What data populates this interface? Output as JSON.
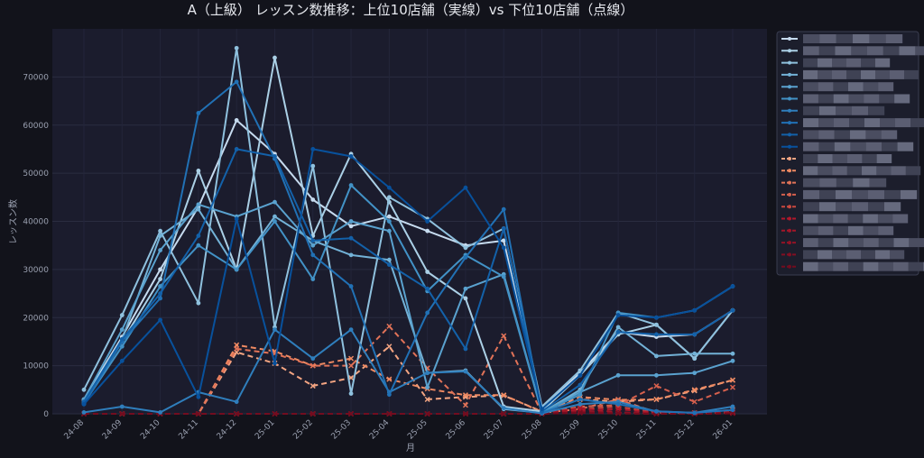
{
  "chart_data": {
    "type": "line",
    "title": "A（上級） レッスン数推移：上位10店舗（実線）vs 下位10店舗（点線）",
    "xlabel": "月",
    "ylabel": "レッスン数",
    "ylim": [
      0,
      80000
    ],
    "yticks": [
      0,
      10000,
      20000,
      30000,
      40000,
      50000,
      60000,
      70000
    ],
    "grid": true,
    "legend_position": "right-outside",
    "categories": [
      "24-08",
      "24-09",
      "24-10",
      "24-11",
      "24-12",
      "25-01",
      "25-02",
      "25-03",
      "25-04",
      "25-05",
      "25-06",
      "25-07",
      "25-08",
      "25-09",
      "25-10",
      "25-11",
      "25-12",
      "26-01"
    ],
    "series": [
      {
        "group": "top",
        "color": "#c6dbef",
        "values": [
          3000,
          16000,
          30000,
          43000,
          61000,
          54000,
          44500,
          39000,
          41000,
          38000,
          35000,
          36000,
          1000,
          8500,
          17000,
          16000,
          16500,
          21500
        ]
      },
      {
        "group": "top",
        "color": "#abd0e6",
        "values": [
          2800,
          15000,
          28000,
          50500,
          30000,
          74000,
          37000,
          54000,
          44000,
          29500,
          24000,
          1500,
          500,
          8000,
          16500,
          18500,
          11500,
          21500
        ]
      },
      {
        "group": "top",
        "color": "#8fc1de",
        "values": [
          5000,
          20500,
          38000,
          23000,
          76000,
          18000,
          51500,
          4200,
          45000,
          40500,
          34500,
          38500,
          1500,
          9000,
          21000,
          18500,
          11500,
          21500
        ]
      },
      {
        "group": "top",
        "color": "#73b2d7",
        "values": [
          2500,
          15500,
          37000,
          42500,
          30000,
          41000,
          36000,
          33000,
          32000,
          8500,
          9000,
          1000,
          200,
          5000,
          18000,
          12000,
          12500,
          12500
        ]
      },
      {
        "group": "top",
        "color": "#5aa2cf",
        "values": [
          3000,
          17500,
          34000,
          43500,
          41000,
          44000,
          35000,
          40000,
          38000,
          5500,
          26000,
          29000,
          300,
          4500,
          8000,
          8000,
          8500,
          11000
        ]
      },
      {
        "group": "top",
        "color": "#4292c6",
        "values": [
          2200,
          14000,
          26500,
          35000,
          30000,
          40000,
          28000,
          47500,
          40000,
          25500,
          33000,
          28500,
          200,
          4000,
          21000,
          20000,
          21500,
          26500
        ]
      },
      {
        "group": "top",
        "color": "#2f7ebc",
        "values": [
          300,
          1500,
          300,
          4500,
          2500,
          17500,
          11500,
          17500,
          4500,
          8500,
          8800,
          1200,
          100,
          2000,
          2500,
          500,
          200,
          1500
        ]
      },
      {
        "group": "top",
        "color": "#2171b5",
        "values": [
          2000,
          15000,
          24000,
          62500,
          69000,
          53000,
          33000,
          26500,
          4000,
          21000,
          32500,
          42500,
          200,
          3000,
          2000,
          500,
          200,
          800
        ]
      },
      {
        "group": "top",
        "color": "#1361a9",
        "values": [
          2500,
          15500,
          25000,
          37000,
          55000,
          53500,
          36000,
          36500,
          31000,
          26000,
          13500,
          38500,
          500,
          6000,
          17000,
          16500,
          16500,
          21500
        ]
      },
      {
        "group": "top",
        "color": "#08519c",
        "values": [
          2000,
          11000,
          19500,
          3500,
          40500,
          10500,
          55000,
          53500,
          47000,
          40000,
          47000,
          34500,
          1000,
          8000,
          20500,
          20000,
          21500,
          26500
        ]
      },
      {
        "group": "bottom",
        "color": "#f4a582",
        "values": [
          0,
          0,
          0,
          0,
          12800,
          10500,
          5800,
          7500,
          14000,
          3000,
          3500,
          3800,
          500,
          3000,
          2500,
          3000,
          4800,
          7000
        ]
      },
      {
        "group": "bottom",
        "color": "#ef8a62",
        "values": [
          0,
          0,
          0,
          0,
          14300,
          13000,
          10000,
          11500,
          7200,
          5200,
          3900,
          3900,
          400,
          3500,
          2900,
          3000,
          5000,
          7000
        ]
      },
      {
        "group": "bottom",
        "color": "#e27358",
        "values": [
          0,
          0,
          0,
          0,
          13500,
          12500,
          10000,
          10000,
          18200,
          9500,
          1800,
          16200,
          200,
          1000,
          3000,
          300,
          200,
          800
        ]
      },
      {
        "group": "bottom",
        "color": "#d6604d",
        "values": [
          0,
          0,
          0,
          0,
          0,
          0,
          0,
          0,
          0,
          0,
          0,
          0,
          0,
          1500,
          1800,
          5800,
          2500,
          5500
        ]
      },
      {
        "group": "bottom",
        "color": "#c9493f",
        "values": [
          0,
          0,
          0,
          0,
          0,
          0,
          0,
          0,
          0,
          0,
          0,
          0,
          0,
          1000,
          1500,
          200,
          100,
          300
        ]
      },
      {
        "group": "bottom",
        "color": "#b2182b",
        "values": [
          0,
          0,
          0,
          0,
          0,
          0,
          0,
          0,
          0,
          0,
          0,
          0,
          0,
          800,
          1000,
          200,
          100,
          200
        ]
      },
      {
        "group": "bottom",
        "color": "#a31628",
        "values": [
          0,
          0,
          0,
          0,
          0,
          0,
          0,
          0,
          0,
          0,
          0,
          0,
          0,
          1200,
          300,
          100,
          100,
          400
        ]
      },
      {
        "group": "bottom",
        "color": "#931325",
        "values": [
          0,
          0,
          0,
          0,
          0,
          0,
          0,
          0,
          0,
          0,
          0,
          0,
          0,
          500,
          200,
          0,
          0,
          200
        ]
      },
      {
        "group": "bottom",
        "color": "#830f22",
        "values": [
          0,
          0,
          0,
          0,
          0,
          0,
          0,
          0,
          0,
          0,
          0,
          0,
          0,
          300,
          100,
          0,
          0,
          100
        ]
      },
      {
        "group": "bottom",
        "color": "#730c1f",
        "values": [
          0,
          0,
          0,
          0,
          0,
          0,
          0,
          0,
          0,
          0,
          0,
          0,
          0,
          200,
          100,
          0,
          0,
          100
        ]
      }
    ]
  }
}
